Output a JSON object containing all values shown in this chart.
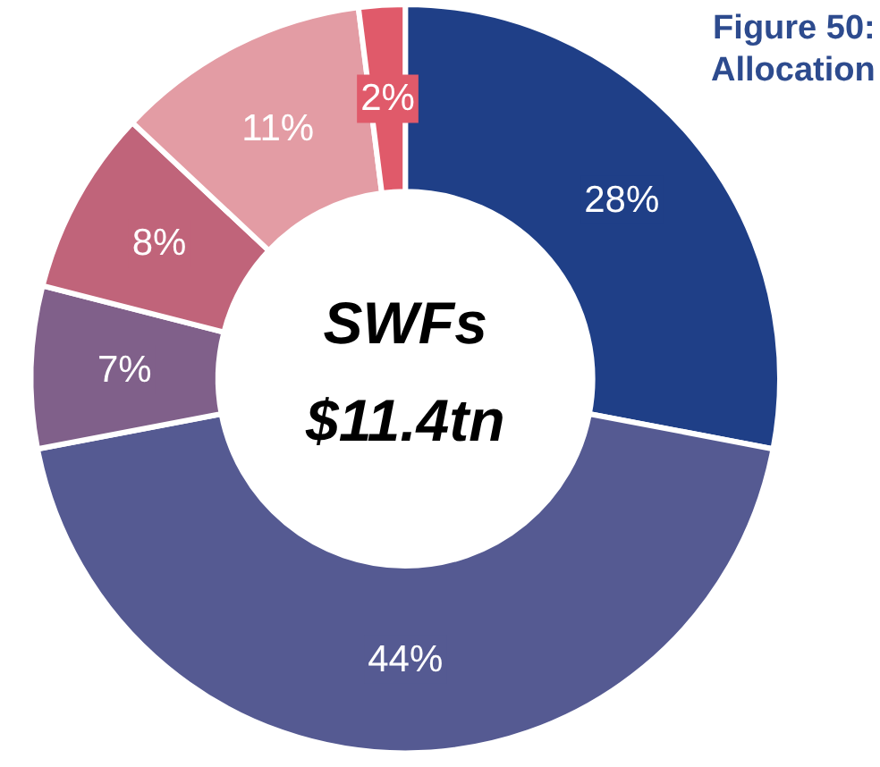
{
  "chart_data": {
    "type": "donut",
    "title": "Figure 50: Allocation",
    "categories": [
      null,
      null,
      null,
      null,
      null,
      null
    ],
    "values": [
      28,
      44,
      7,
      8,
      11,
      2
    ],
    "colors": [
      "#1f3f87",
      "#555a92",
      "#80608a",
      "#c0647a",
      "#e39ca4",
      "#e05a6a"
    ],
    "value_labels": [
      "28%",
      "44%",
      "7%",
      "8%",
      "11%",
      "2%"
    ],
    "annotations": [
      "SWFs",
      "$11.4tn"
    ]
  }
}
